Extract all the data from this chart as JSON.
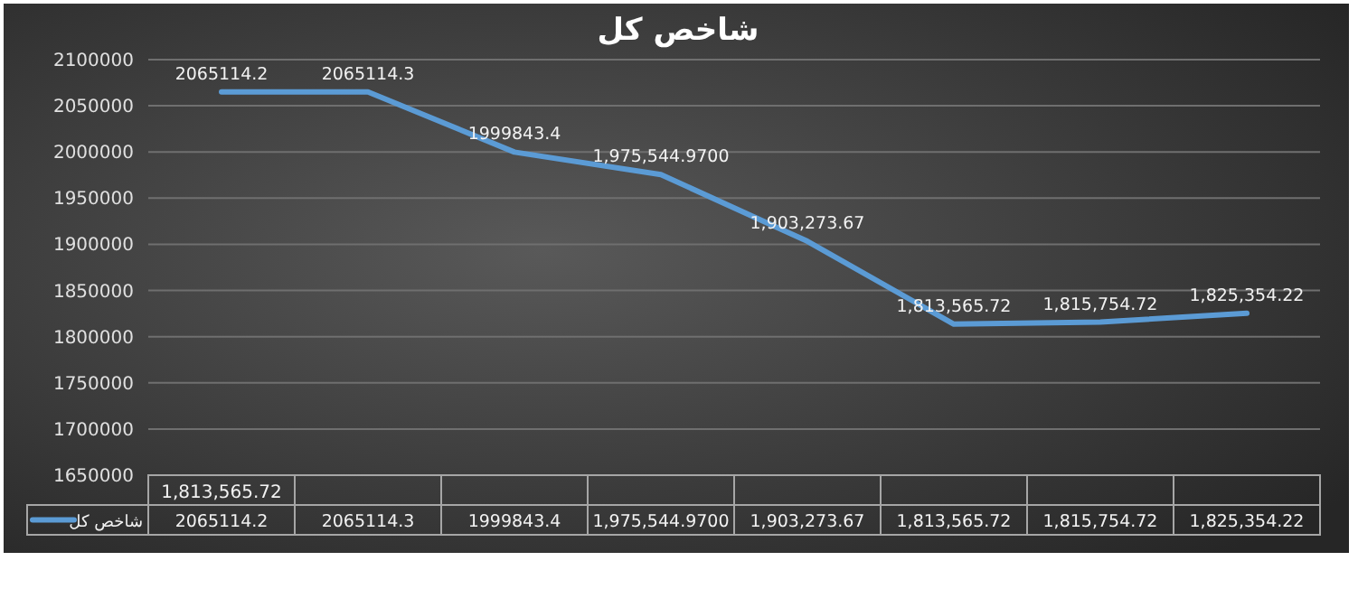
{
  "chart_data": {
    "type": "line",
    "title": "شاخص کل",
    "categories": [
      "1,813,565.72",
      null,
      null,
      null,
      null,
      null,
      null,
      null
    ],
    "series": [
      {
        "name": "شاخص کل",
        "color": "#5b9bd5",
        "values": [
          2065114.2,
          2065114.3,
          1999843.4,
          1975544.97,
          1903273.67,
          1813565.72,
          1815754.72,
          1825354.22
        ],
        "value_labels": [
          "2065114.2",
          "2065114.3",
          "1999843.4",
          "1,975,544.9700",
          "1,903,273.67",
          "1,813,565.72",
          "1,815,754.72",
          "1,825,354.22"
        ]
      }
    ],
    "ylim": [
      1650000,
      2100000
    ],
    "yticks": [
      1650000,
      1700000,
      1750000,
      1800000,
      1850000,
      1900000,
      1950000,
      2000000,
      2050000,
      2100000
    ],
    "grid": "y",
    "legend": "bottom left"
  }
}
